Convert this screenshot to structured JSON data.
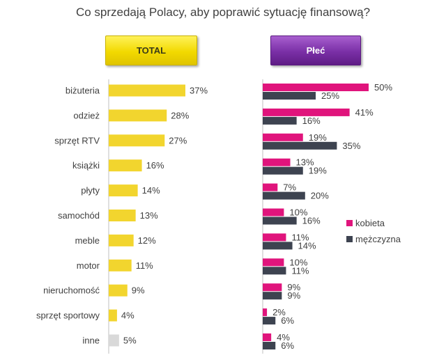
{
  "title": "Co sprzedają Polacy, aby poprawić sytuację finansową?",
  "headers": {
    "total": "TOTAL",
    "gender": "Płeć"
  },
  "colors": {
    "total": "#f2d52e",
    "total_other": "#d9d9d9",
    "female": "#e0147c",
    "male": "#3d4350",
    "axis": "#bfbfbf",
    "text": "#404040"
  },
  "chart_data": [
    {
      "type": "bar",
      "orientation": "horizontal",
      "title": "TOTAL",
      "categories": [
        "biżuteria",
        "odzież",
        "sprzęt RTV",
        "książki",
        "płyty",
        "samochód",
        "meble",
        "motor",
        "nieruchomość",
        "sprzęt sportowy",
        "inne"
      ],
      "values": [
        37,
        28,
        27,
        16,
        14,
        13,
        12,
        11,
        9,
        4,
        5
      ],
      "labels": [
        "37%",
        "28%",
        "27%",
        "16%",
        "14%",
        "13%",
        "12%",
        "11%",
        "9%",
        "4%",
        "5%"
      ],
      "unit": "%"
    },
    {
      "type": "bar",
      "orientation": "horizontal",
      "title": "Płeć",
      "categories": [
        "biżuteria",
        "odzież",
        "sprzęt RTV",
        "książki",
        "płyty",
        "samochód",
        "meble",
        "motor",
        "nieruchomość",
        "sprzęt sportowy",
        "inne"
      ],
      "series": [
        {
          "name": "kobieta",
          "values": [
            50,
            41,
            19,
            13,
            7,
            10,
            11,
            10,
            9,
            2,
            4
          ],
          "labels": [
            "50%",
            "41%",
            "19%",
            "13%",
            "7%",
            "10%",
            "11%",
            "10%",
            "9%",
            "2%",
            "4%"
          ]
        },
        {
          "name": "mężczyzna",
          "values": [
            25,
            16,
            35,
            19,
            20,
            16,
            14,
            11,
            9,
            6,
            6
          ],
          "labels": [
            "25%",
            "16%",
            "35%",
            "19%",
            "20%",
            "16%",
            "14%",
            "11%",
            "9%",
            "6%",
            "6%"
          ]
        }
      ],
      "legend_position": "right",
      "unit": "%"
    }
  ]
}
